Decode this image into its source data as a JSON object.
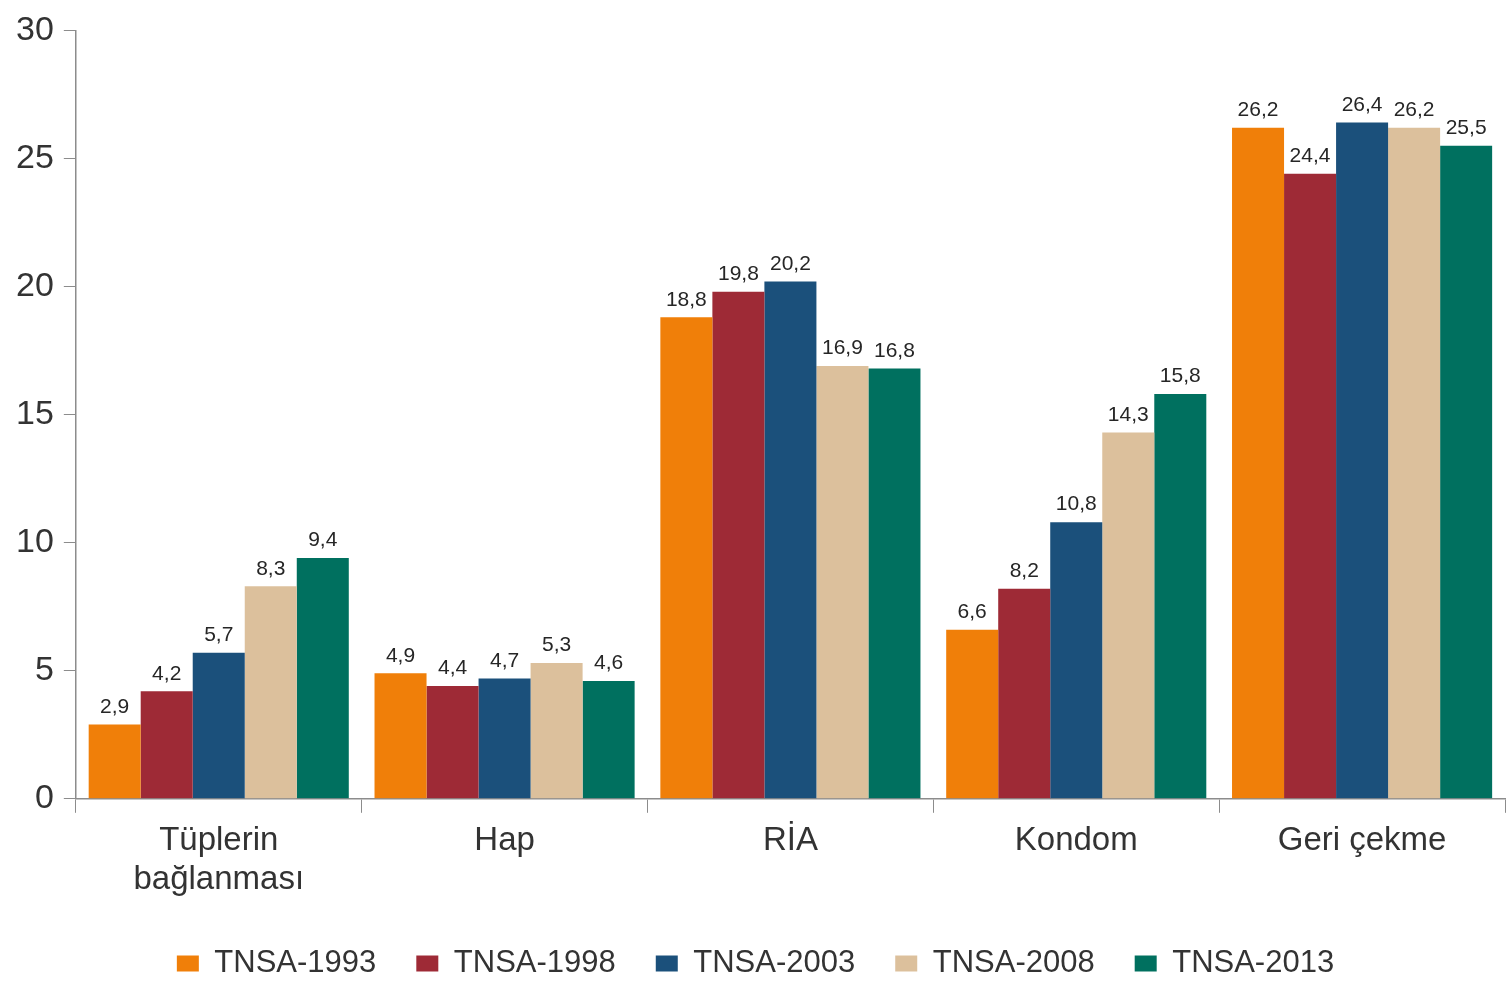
{
  "chart_data": {
    "type": "bar",
    "categories": [
      "Tüplerin bağlanması",
      "Hap",
      "RİA",
      "Kondom",
      "Geri çekme"
    ],
    "series": [
      {
        "name": "TNSA-1993",
        "color": "#f07f09",
        "values": [
          2.9,
          4.9,
          18.8,
          6.6,
          26.2
        ],
        "value_labels": [
          "2,9",
          "4,9",
          "18,8",
          "6,6",
          "26,2"
        ]
      },
      {
        "name": "TNSA-1998",
        "color": "#9e2a36",
        "values": [
          4.2,
          4.4,
          19.8,
          8.2,
          24.4
        ],
        "value_labels": [
          "4,2",
          "4,4",
          "19,8",
          "8,2",
          "24,4"
        ]
      },
      {
        "name": "TNSA-2003",
        "color": "#1b507b",
        "values": [
          5.7,
          4.7,
          20.2,
          10.8,
          26.4
        ],
        "value_labels": [
          "5,7",
          "4,7",
          "20,2",
          "10,8",
          "26,4"
        ]
      },
      {
        "name": "TNSA-2008",
        "color": "#dcc09c",
        "values": [
          8.3,
          5.3,
          16.9,
          14.3,
          26.2
        ],
        "value_labels": [
          "8,3",
          "5,3",
          "16,9",
          "14,3",
          "26,2"
        ]
      },
      {
        "name": "TNSA-2013",
        "color": "#00705f",
        "values": [
          9.4,
          4.6,
          16.8,
          15.8,
          25.5
        ],
        "value_labels": [
          "9,4",
          "4,6",
          "16,8",
          "15,8",
          "25,5"
        ]
      }
    ],
    "ylim": [
      0,
      30
    ],
    "yticks": [
      0,
      5,
      10,
      15,
      20,
      25,
      30
    ],
    "legend": "bottom"
  }
}
